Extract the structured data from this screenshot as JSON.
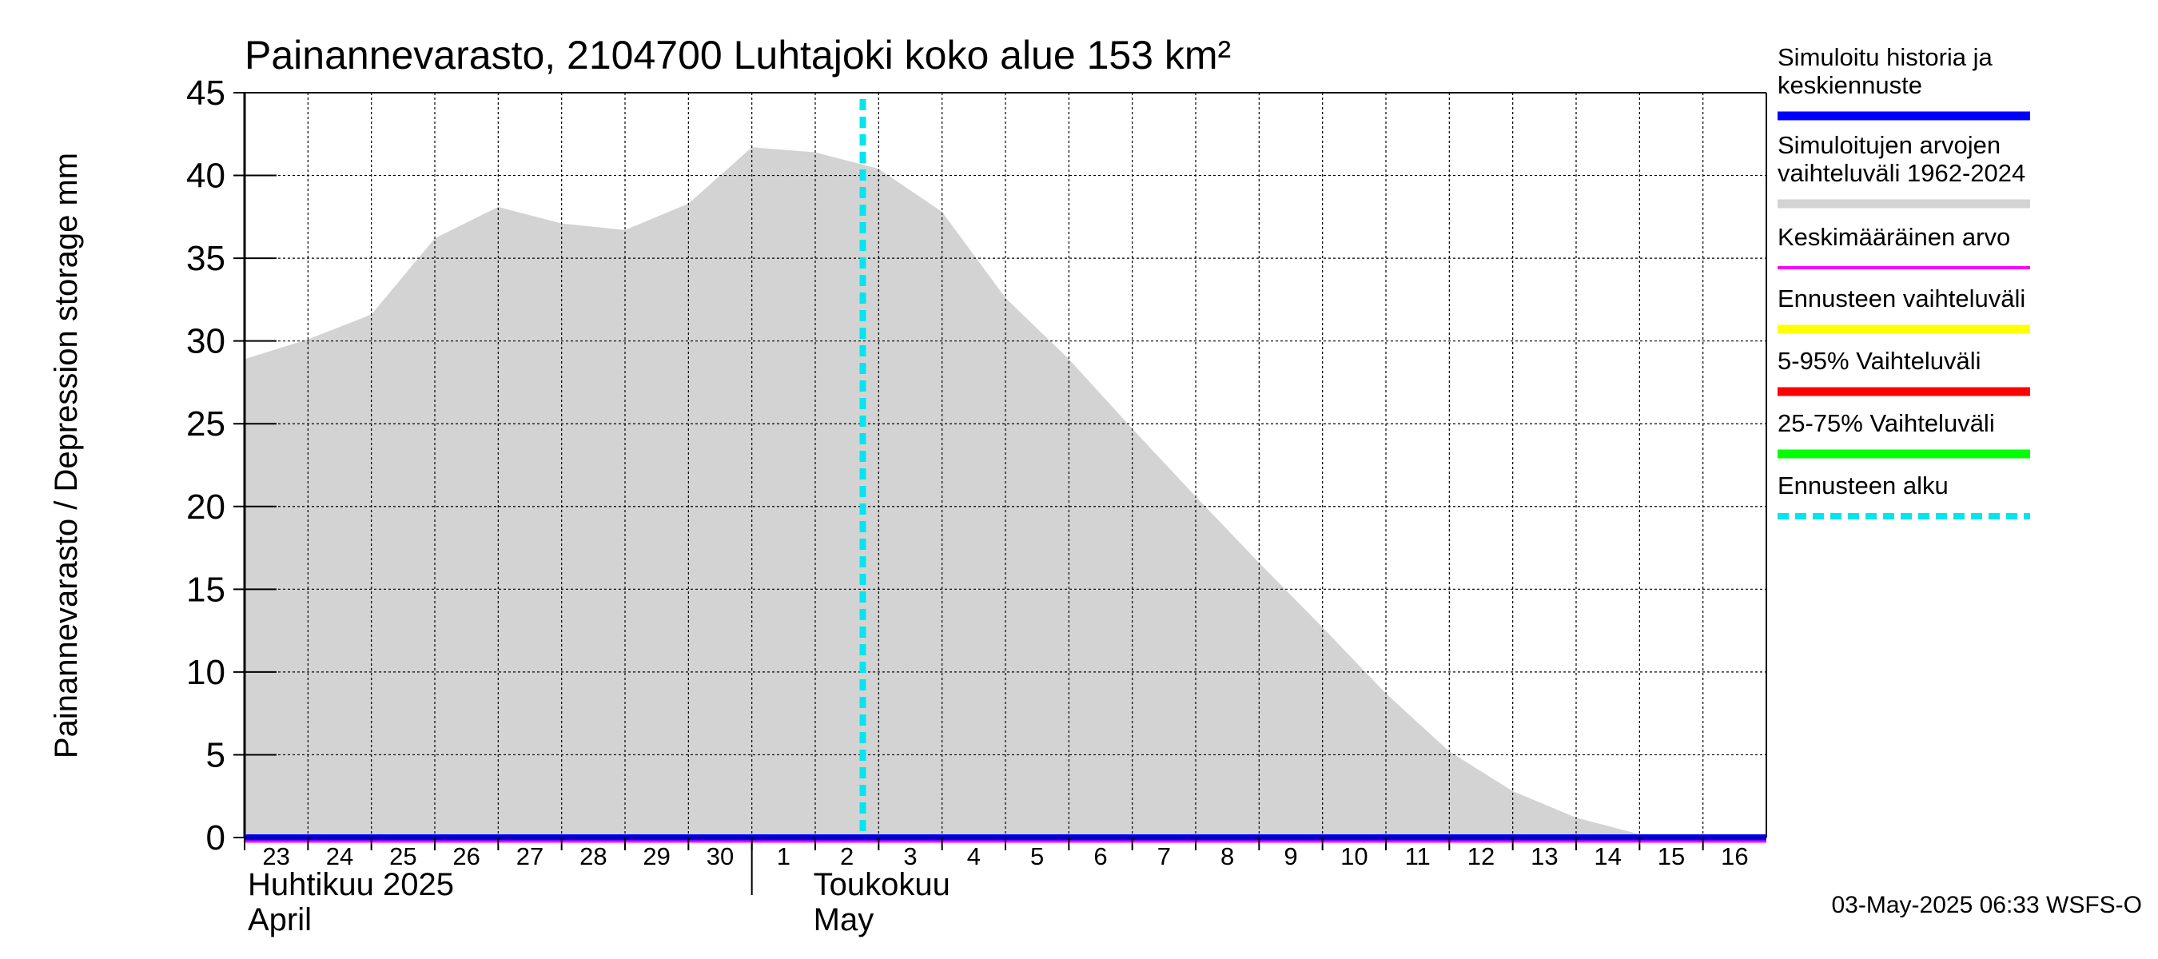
{
  "chart_data": {
    "type": "area",
    "title": "Painannevarasto, 2104700 Luhtajoki koko alue 153 km²",
    "ylabel": "Painannevarasto / Depression storage    mm",
    "ylim": [
      0,
      45
    ],
    "yticks": [
      "0",
      "5",
      "10",
      "15",
      "20",
      "25",
      "30",
      "35",
      "40",
      "45"
    ],
    "x_day_labels": [
      "23",
      "24",
      "25",
      "26",
      "27",
      "28",
      "29",
      "30",
      "1",
      "2",
      "3",
      "4",
      "5",
      "6",
      "7",
      "8",
      "9",
      "10",
      "11",
      "12",
      "13",
      "14",
      "15",
      "16"
    ],
    "x_range": [
      "2025-04-23",
      "2025-05-17"
    ],
    "month_labels": [
      {
        "fi": "Huhtikuu  2025",
        "en": "April"
      },
      {
        "fi": "Toukokuu",
        "en": "May"
      }
    ],
    "grid": true,
    "forecast_start": "2025-05-02T18:00",
    "series": [
      {
        "name": "Simuloitujen arvojen vaihteluväli 1962-2024",
        "style": "band",
        "color": "#d3d3d3",
        "x": [
          "2025-04-23",
          "2025-04-24",
          "2025-04-25",
          "2025-04-26",
          "2025-04-27",
          "2025-04-28",
          "2025-04-29",
          "2025-04-30",
          "2025-05-01",
          "2025-05-02",
          "2025-05-03",
          "2025-05-04",
          "2025-05-05",
          "2025-05-06",
          "2025-05-07",
          "2025-05-08",
          "2025-05-09",
          "2025-05-10",
          "2025-05-11",
          "2025-05-12",
          "2025-05-13",
          "2025-05-14",
          "2025-05-15",
          "2025-05-16",
          "2025-05-17"
        ],
        "upper": [
          28.9,
          30.1,
          31.6,
          36.2,
          38.1,
          37.1,
          36.7,
          38.3,
          41.7,
          41.4,
          40.4,
          37.8,
          32.6,
          28.9,
          24.7,
          20.6,
          16.6,
          12.7,
          8.7,
          5.2,
          2.8,
          1.2,
          0.2,
          0.1,
          0.1
        ],
        "lower": [
          0,
          0,
          0,
          0,
          0,
          0,
          0,
          0,
          0,
          0,
          0,
          0,
          0,
          0,
          0,
          0,
          0,
          0,
          0,
          0,
          0,
          0,
          0,
          0,
          0
        ]
      },
      {
        "name": "Simuloitu historia ja keskiennuste",
        "style": "line",
        "color": "#0000ff",
        "x": [
          "2025-04-23",
          "2025-05-17"
        ],
        "values": [
          0,
          0
        ]
      },
      {
        "name": "Keskimääräinen arvo",
        "style": "line",
        "color": "#ff00ff",
        "x": [
          "2025-04-23",
          "2025-05-17"
        ],
        "values": [
          0,
          0
        ]
      }
    ],
    "legend": {
      "placement": "right",
      "entries": [
        {
          "label": "Simuloitu historia ja\nkeskiennuste",
          "color": "#0000ff",
          "style": "solid"
        },
        {
          "label": "Simuloitujen arvojen\nvaihteluväli 1962-2024",
          "color": "#d3d3d3",
          "style": "solid"
        },
        {
          "label": "Keskimääräinen arvo",
          "color": "#ff00ff",
          "style": "thin"
        },
        {
          "label": "Ennusteen vaihteluväli",
          "color": "#ffff00",
          "style": "solid"
        },
        {
          "label": "5-95% Vaihteluväli",
          "color": "#ff0000",
          "style": "solid"
        },
        {
          "label": "25-75% Vaihteluväli",
          "color": "#00ff00",
          "style": "solid"
        },
        {
          "label": "Ennusteen alku",
          "color": "#00e5ee",
          "style": "dashed"
        }
      ]
    }
  },
  "footer": "03-May-2025 06:33 WSFS-O"
}
